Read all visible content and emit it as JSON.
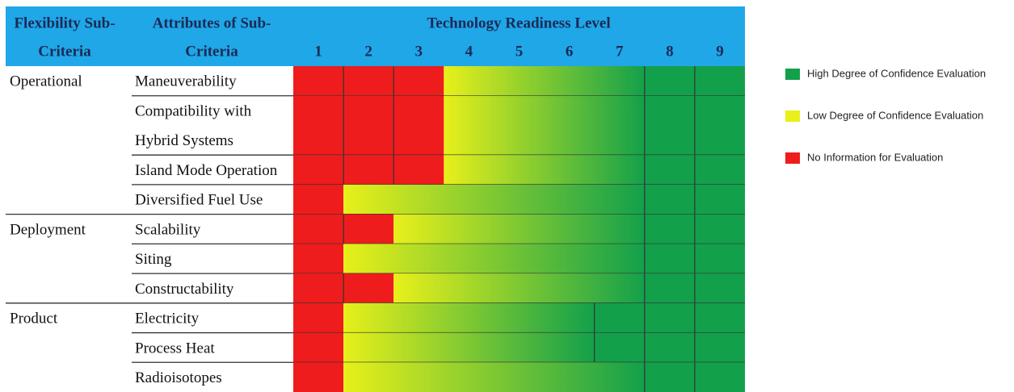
{
  "header": {
    "criteria": [
      "Flexibility Sub-",
      "Criteria"
    ],
    "attributes": [
      "Attributes of Sub-",
      "Criteria"
    ],
    "trl_title": "Technology Readiness Level",
    "trl_levels": [
      1,
      2,
      3,
      4,
      5,
      6,
      7,
      8,
      9
    ]
  },
  "groups": [
    {
      "name": "Operational",
      "rows": [
        {
          "attribute": [
            "Maneuverability"
          ],
          "no_information_through": 3,
          "low_confidence_through": 7
        },
        {
          "attribute": [
            "Compatibility with",
            "Hybrid Systems"
          ],
          "no_information_through": 3,
          "low_confidence_through": 7
        },
        {
          "attribute": [
            "Island Mode Operation"
          ],
          "no_information_through": 3,
          "low_confidence_through": 7
        },
        {
          "attribute": [
            "Diversified Fuel Use"
          ],
          "no_information_through": 1,
          "low_confidence_through": 7
        }
      ]
    },
    {
      "name": "Deployment",
      "rows": [
        {
          "attribute": [
            "Scalability"
          ],
          "no_information_through": 2,
          "low_confidence_through": 7
        },
        {
          "attribute": [
            "Siting"
          ],
          "no_information_through": 1,
          "low_confidence_through": 7
        },
        {
          "attribute": [
            "Constructability"
          ],
          "no_information_through": 2,
          "low_confidence_through": 7
        }
      ]
    },
    {
      "name": "Product",
      "rows": [
        {
          "attribute": [
            "Electricity"
          ],
          "no_information_through": 1,
          "low_confidence_through": 6
        },
        {
          "attribute": [
            "Process Heat"
          ],
          "no_information_through": 1,
          "low_confidence_through": 6
        },
        {
          "attribute": [
            "Radioisotopes"
          ],
          "no_information_through": 1,
          "low_confidence_through": 7
        }
      ]
    }
  ],
  "legend": [
    {
      "label": "High Degree of Confidence Evaluation",
      "color": "#13a04b"
    },
    {
      "label": "Low Degree of Confidence Evaluation",
      "color": "#e8f01a"
    },
    {
      "label": "No Information for Evaluation",
      "color": "#ee1c1c"
    }
  ]
}
